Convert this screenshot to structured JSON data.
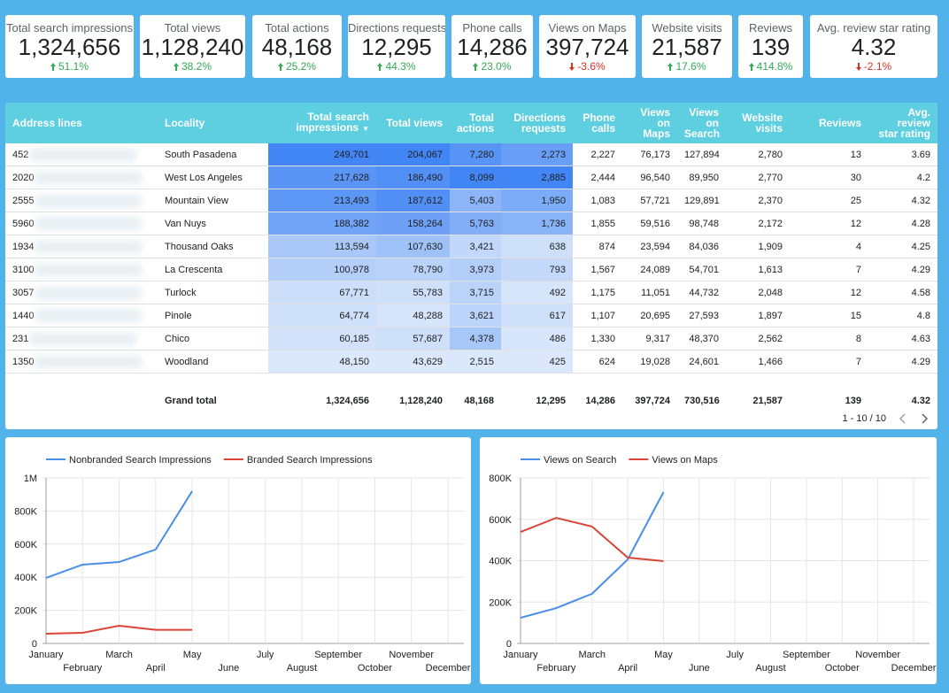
{
  "kpis": [
    {
      "label": "Total search impressions",
      "value": "1,324,656",
      "change": "51.1%",
      "trend": "up",
      "color": "#34a853"
    },
    {
      "label": "Total views",
      "value": "1,128,240",
      "change": "38.2%",
      "trend": "up",
      "color": "#34a853"
    },
    {
      "label": "Total actions",
      "value": "48,168",
      "change": "25.2%",
      "trend": "up",
      "color": "#34a853"
    },
    {
      "label": "Directions requests",
      "value": "12,295",
      "change": "44.3%",
      "trend": "up",
      "color": "#34a853"
    },
    {
      "label": "Phone calls",
      "value": "14,286",
      "change": "23.0%",
      "trend": "up",
      "color": "#34a853"
    },
    {
      "label": "Views on Maps",
      "value": "397,724",
      "change": "-3.6%",
      "trend": "down",
      "color": "#d93025"
    },
    {
      "label": "Website visits",
      "value": "21,587",
      "change": "17.6%",
      "trend": "up",
      "color": "#34a853"
    },
    {
      "label": "Reviews",
      "value": "139",
      "change": "414.8%",
      "trend": "up",
      "color": "#34a853"
    },
    {
      "label": "Avg. review star rating",
      "value": "4.32",
      "change": "-2.1%",
      "trend": "down",
      "color": "#d93025"
    }
  ],
  "table": {
    "columns": [
      "Address lines",
      "Locality",
      "Total search impressions",
      "Total views",
      "Total actions",
      "Directions requests",
      "Phone calls",
      "Views on Maps",
      "Views on Search",
      "Website visits",
      "Reviews",
      "Avg. review star rating"
    ],
    "sort_column": 2,
    "heatmap_columns": [
      2,
      3,
      4,
      5
    ],
    "rows": [
      [
        "452",
        "South Pasadena",
        "249,701",
        "204,067",
        "7,280",
        "2,273",
        "2,227",
        "76,173",
        "127,894",
        "2,780",
        "13",
        "3.69"
      ],
      [
        "2020",
        "West Los Angeles",
        "217,628",
        "186,490",
        "8,099",
        "2,885",
        "2,444",
        "96,540",
        "89,950",
        "2,770",
        "30",
        "4.2"
      ],
      [
        "2555",
        "Mountain View",
        "213,493",
        "187,612",
        "5,403",
        "1,950",
        "1,083",
        "57,721",
        "129,891",
        "2,370",
        "25",
        "4.32"
      ],
      [
        "5960",
        "Van Nuys",
        "188,382",
        "158,264",
        "5,763",
        "1,736",
        "1,855",
        "59,516",
        "98,748",
        "2,172",
        "12",
        "4.28"
      ],
      [
        "1934",
        "Thousand Oaks",
        "113,594",
        "107,630",
        "3,421",
        "638",
        "874",
        "23,594",
        "84,036",
        "1,909",
        "4",
        "4.25"
      ],
      [
        "3100",
        "La Crescenta",
        "100,978",
        "78,790",
        "3,973",
        "793",
        "1,567",
        "24,089",
        "54,701",
        "1,613",
        "7",
        "4.29"
      ],
      [
        "3057",
        "Turlock",
        "67,771",
        "55,783",
        "3,715",
        "492",
        "1,175",
        "11,051",
        "44,732",
        "2,048",
        "12",
        "4.58"
      ],
      [
        "1440",
        "Pinole",
        "64,774",
        "48,288",
        "3,621",
        "617",
        "1,107",
        "20,695",
        "27,593",
        "1,897",
        "15",
        "4.8"
      ],
      [
        "231",
        "Chico",
        "60,185",
        "57,687",
        "4,378",
        "486",
        "1,330",
        "9,317",
        "48,370",
        "2,562",
        "8",
        "4.63"
      ],
      [
        "1350",
        "Woodland",
        "48,150",
        "43,629",
        "2,515",
        "425",
        "624",
        "19,028",
        "24,601",
        "1,466",
        "7",
        "4.29"
      ]
    ],
    "total": {
      "label": "Grand total",
      "cells": [
        "1,324,656",
        "1,128,240",
        "48,168",
        "12,295",
        "14,286",
        "397,724",
        "730,516",
        "21,587",
        "139",
        "4.32"
      ]
    },
    "pagination": "1 - 10 / 10"
  },
  "chart_data": [
    {
      "type": "line",
      "categories": [
        "January",
        "February",
        "March",
        "April",
        "May",
        "June",
        "July",
        "August",
        "September",
        "October",
        "November",
        "December"
      ],
      "series": [
        {
          "name": "Nonbranded Search Impressions",
          "color": "#4a8fe7",
          "values": [
            396000,
            476000,
            492000,
            567000,
            920000,
            null,
            null,
            null,
            null,
            null,
            null,
            null
          ]
        },
        {
          "name": "Branded Search Impressions",
          "color": "#db4437",
          "values": [
            59000,
            64000,
            107000,
            82000,
            82000,
            null,
            null,
            null,
            null,
            null,
            null,
            null
          ]
        }
      ],
      "ylim": [
        0,
        1000000
      ],
      "yticks": [
        0,
        {
          "value": 200000,
          "label": "200K"
        },
        {
          "value": 400000,
          "label": "400K"
        },
        {
          "value": 600000,
          "label": "600K"
        },
        {
          "value": 800000,
          "label": "800K"
        },
        {
          "value": 1000000,
          "label": "1M"
        }
      ],
      "grid": true,
      "legend": "top-left"
    },
    {
      "type": "line",
      "categories": [
        "January",
        "February",
        "March",
        "April",
        "May",
        "June",
        "July",
        "August",
        "September",
        "October",
        "November",
        "December"
      ],
      "series": [
        {
          "name": "Views on Search",
          "color": "#4a8fe7",
          "values": [
            124000,
            171000,
            240000,
            406000,
            731000,
            null,
            null,
            null,
            null,
            null,
            null,
            null
          ]
        },
        {
          "name": "Views on Maps",
          "color": "#db4437",
          "values": [
            539000,
            607000,
            565000,
            415000,
            398000,
            null,
            null,
            null,
            null,
            null,
            null,
            null
          ]
        }
      ],
      "ylim": [
        0,
        800000
      ],
      "yticks": [
        0,
        {
          "value": 200000,
          "label": "200K"
        },
        {
          "value": 400000,
          "label": "400K"
        },
        {
          "value": 600000,
          "label": "600K"
        },
        {
          "value": 800000,
          "label": "800K"
        }
      ],
      "grid": true,
      "legend": "top-left"
    }
  ]
}
